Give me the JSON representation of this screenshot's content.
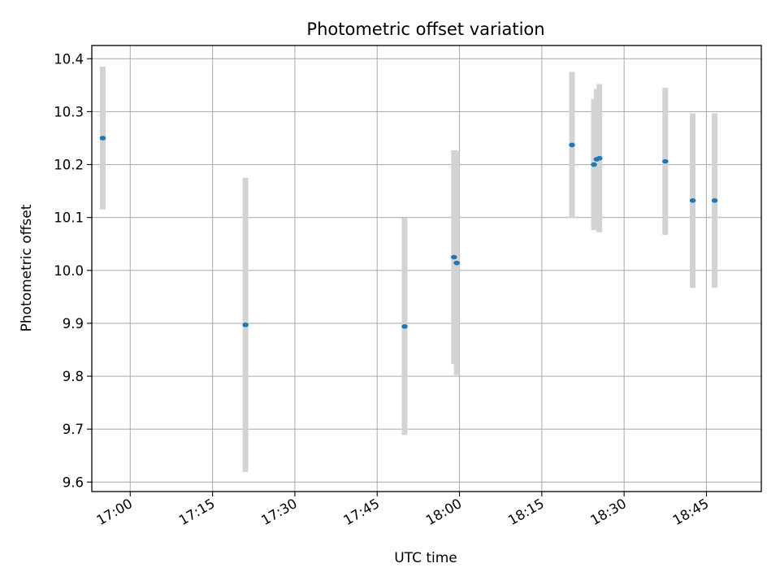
{
  "chart_data": {
    "type": "scatter",
    "title": "Photometric offset variation",
    "xlabel": "UTC time",
    "ylabel": "Photometric offset",
    "grid": true,
    "xlim": [
      "16:53",
      "18:55"
    ],
    "ylim": [
      9.582,
      10.425
    ],
    "x_ticks": [
      "17:00",
      "17:15",
      "17:30",
      "17:45",
      "18:00",
      "18:15",
      "18:30",
      "18:45"
    ],
    "y_ticks": [
      "9.6",
      "9.7",
      "9.8",
      "9.9",
      "10.0",
      "10.1",
      "10.2",
      "10.3",
      "10.4"
    ],
    "colors": {
      "points": "#1f77b4",
      "errorbars": "#d3d3d3"
    },
    "series": [
      {
        "points": [
          {
            "x": "16:55",
            "y": 10.25,
            "err": 0.135
          },
          {
            "x": "17:21",
            "y": 9.897,
            "err": 0.278
          },
          {
            "x": "17:50",
            "y": 9.894,
            "err": 0.205
          },
          {
            "x": "17:59",
            "y": 10.025,
            "err": 0.202
          },
          {
            "x": "17:59.5",
            "y": 10.014,
            "err": 0.212
          },
          {
            "x": "18:20.5",
            "y": 10.237,
            "err": 0.138
          },
          {
            "x": "18:24.5",
            "y": 10.2,
            "err": 0.124
          },
          {
            "x": "18:25",
            "y": 10.21,
            "err": 0.133
          },
          {
            "x": "18:25.5",
            "y": 10.212,
            "err": 0.14
          },
          {
            "x": "18:37.5",
            "y": 10.206,
            "err": 0.139
          },
          {
            "x": "18:42.5",
            "y": 10.132,
            "err": 0.165
          },
          {
            "x": "18:46.5",
            "y": 10.132,
            "err": 0.165
          }
        ]
      }
    ]
  }
}
